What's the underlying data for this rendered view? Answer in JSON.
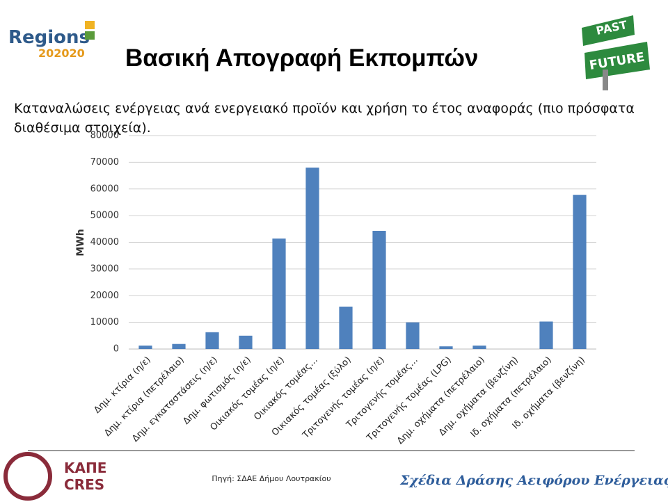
{
  "slide": {
    "logo_left": [
      "Regions",
      "202020"
    ],
    "title": "Βασική Απογραφή Εκπομπών",
    "sign": [
      "PAST",
      "FUTURE"
    ],
    "subtitle": [
      "Καταναλώσεις ενέργειας ανά ενεργειακό προϊόν και χρήση το έτος αναφοράς (πιο πρόσφατα",
      "διαθέσιμα στοιχεία)."
    ],
    "footer_logo": [
      "ΚΑΠΕ",
      "CRES"
    ],
    "source": "Πηγή: ΣΔΑΕ Δήμου Λουτρακίου",
    "footer_right": "Σχέδια Δράσης Αειφόρου Ενέργειας"
  },
  "chart_data": {
    "type": "bar",
    "y_label": "MWh",
    "categories": [
      "Δημ. κτίρια (η/ε)",
      "Δημ. κτίρια (πετρέλαιο)",
      "Δημ. εγκαταστάσεις (η/ε)",
      "Δημ. φωτισμός (η/ε)",
      "Οικιακός τομέας (η/ε)",
      "Οικιακός τομέας…",
      "Οικιακός τομέας (ξύλο)",
      "Τριτογενής τομέας (η/ε)",
      "Τριτογενής τομέας…",
      "Τριτογενής τομέας (LPG)",
      "Δημ. οχήματα (πετρέλαιο)",
      "Δημ. οχήματα (βενζίνη)",
      "Ιδ. οχήματα (πετρέλαιο)",
      "Ιδ. οχήματα (βενζίνη)"
    ],
    "values": [
      1300,
      1900,
      6300,
      5000,
      41400,
      68000,
      15900,
      44300,
      10000,
      1000,
      1300,
      0,
      10300,
      57800
    ],
    "color": "#4f81bd",
    "ylim": [
      0,
      80000
    ],
    "yticks": [
      0,
      10000,
      20000,
      30000,
      40000,
      50000,
      60000,
      70000,
      80000
    ],
    "grid": true
  }
}
